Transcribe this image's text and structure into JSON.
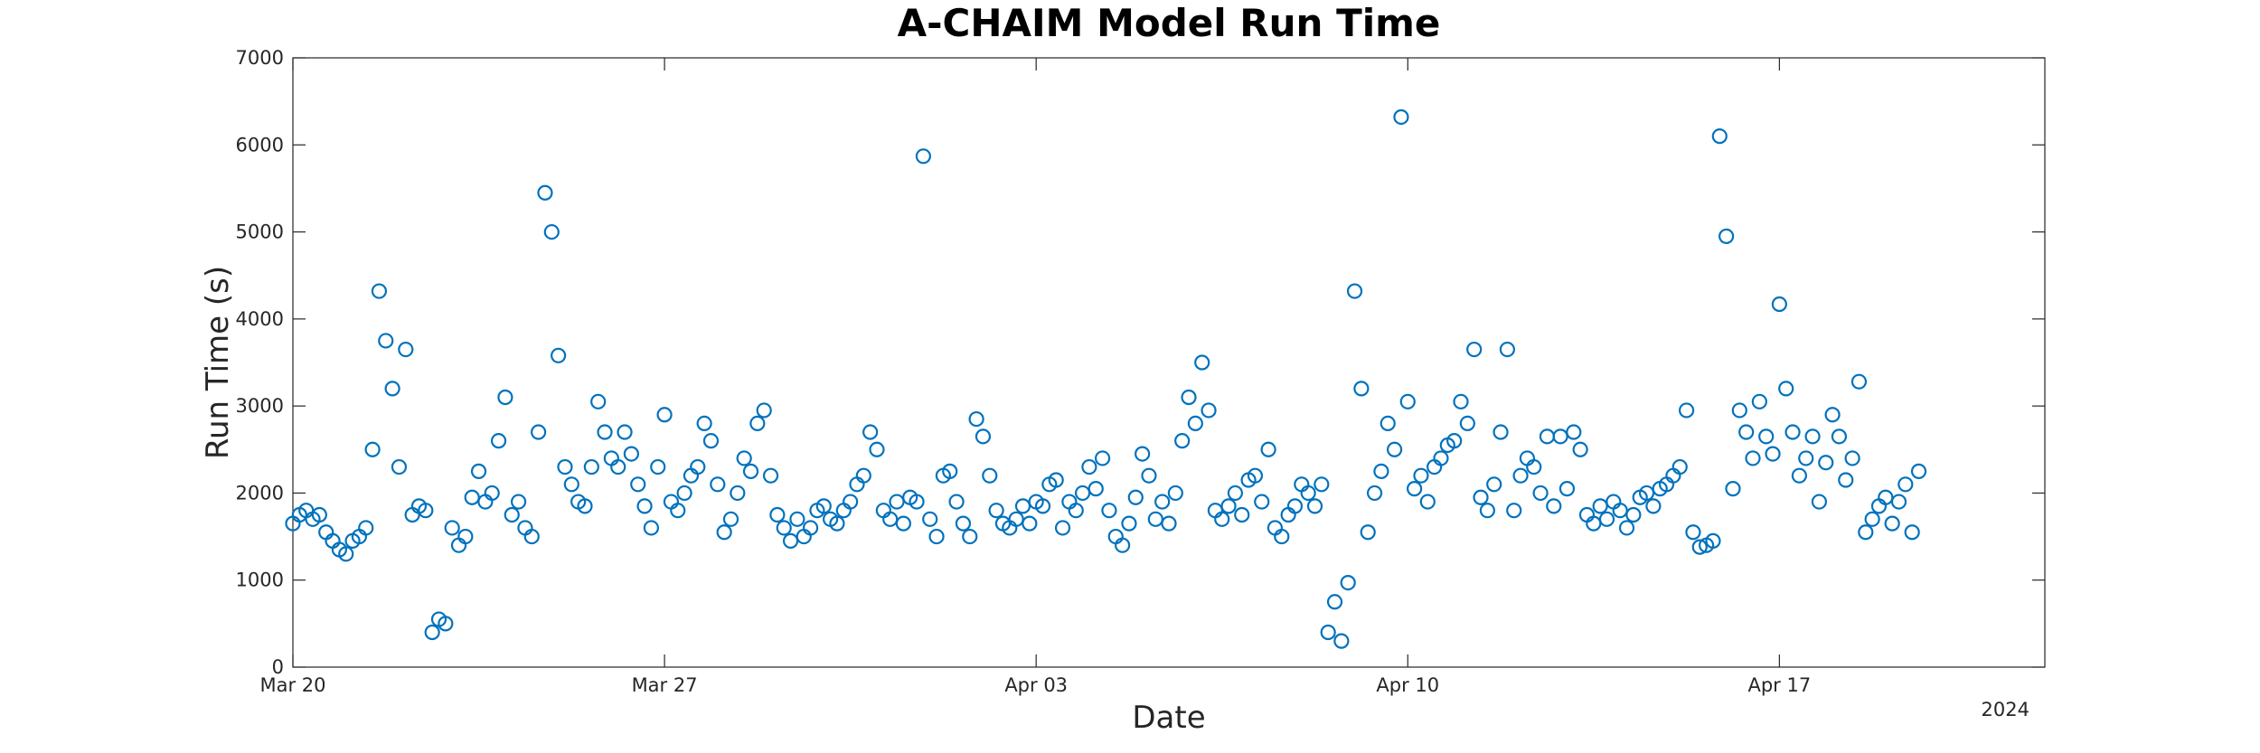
{
  "chart_data": {
    "type": "scatter",
    "title": "A-CHAIM Model Run Time",
    "x_label": "Date",
    "y_label": "Run Time (s)",
    "x_year_label": "2024",
    "color": "#0072BD",
    "marker": "open-circle",
    "grid": false,
    "xlim": [
      "2024-03-20T00:00",
      "2024-04-22T00:00"
    ],
    "xticks": [
      {
        "value": "2024-03-20T00:00",
        "label": "Mar 20"
      },
      {
        "value": "2024-03-27T00:00",
        "label": "Mar 27"
      },
      {
        "value": "2024-04-03T00:00",
        "label": "Apr 03"
      },
      {
        "value": "2024-04-10T00:00",
        "label": "Apr 10"
      },
      {
        "value": "2024-04-17T00:00",
        "label": "Apr 17"
      }
    ],
    "ylim": [
      0,
      7000
    ],
    "yticks": [
      0,
      1000,
      2000,
      3000,
      4000,
      5000,
      6000,
      7000
    ],
    "x": [
      "2024-03-20T00:00",
      "2024-03-20T03:00",
      "2024-03-20T06:00",
      "2024-03-20T09:00",
      "2024-03-20T12:00",
      "2024-03-20T15:00",
      "2024-03-20T18:00",
      "2024-03-20T21:00",
      "2024-03-21T00:00",
      "2024-03-21T03:00",
      "2024-03-21T06:00",
      "2024-03-21T09:00",
      "2024-03-21T12:00",
      "2024-03-21T15:00",
      "2024-03-21T18:00",
      "2024-03-21T21:00",
      "2024-03-22T00:00",
      "2024-03-22T03:00",
      "2024-03-22T06:00",
      "2024-03-22T09:00",
      "2024-03-22T12:00",
      "2024-03-22T15:00",
      "2024-03-22T18:00",
      "2024-03-22T21:00",
      "2024-03-23T00:00",
      "2024-03-23T03:00",
      "2024-03-23T06:00",
      "2024-03-23T09:00",
      "2024-03-23T12:00",
      "2024-03-23T15:00",
      "2024-03-23T18:00",
      "2024-03-23T21:00",
      "2024-03-24T00:00",
      "2024-03-24T03:00",
      "2024-03-24T06:00",
      "2024-03-24T09:00",
      "2024-03-24T12:00",
      "2024-03-24T15:00",
      "2024-03-24T18:00",
      "2024-03-24T21:00",
      "2024-03-25T00:00",
      "2024-03-25T03:00",
      "2024-03-25T06:00",
      "2024-03-25T09:00",
      "2024-03-25T12:00",
      "2024-03-25T15:00",
      "2024-03-25T18:00",
      "2024-03-25T21:00",
      "2024-03-26T00:00",
      "2024-03-26T03:00",
      "2024-03-26T06:00",
      "2024-03-26T09:00",
      "2024-03-26T12:00",
      "2024-03-26T15:00",
      "2024-03-26T18:00",
      "2024-03-26T21:00",
      "2024-03-27T00:00",
      "2024-03-27T03:00",
      "2024-03-27T06:00",
      "2024-03-27T09:00",
      "2024-03-27T12:00",
      "2024-03-27T15:00",
      "2024-03-27T18:00",
      "2024-03-27T21:00",
      "2024-03-28T00:00",
      "2024-03-28T03:00",
      "2024-03-28T06:00",
      "2024-03-28T09:00",
      "2024-03-28T12:00",
      "2024-03-28T15:00",
      "2024-03-28T18:00",
      "2024-03-28T21:00",
      "2024-03-29T00:00",
      "2024-03-29T03:00",
      "2024-03-29T06:00",
      "2024-03-29T09:00",
      "2024-03-29T12:00",
      "2024-03-29T15:00",
      "2024-03-29T18:00",
      "2024-03-29T21:00",
      "2024-03-30T00:00",
      "2024-03-30T03:00",
      "2024-03-30T06:00",
      "2024-03-30T09:00",
      "2024-03-30T12:00",
      "2024-03-30T15:00",
      "2024-03-30T18:00",
      "2024-03-30T21:00",
      "2024-03-31T00:00",
      "2024-03-31T03:00",
      "2024-03-31T06:00",
      "2024-03-31T09:00",
      "2024-03-31T12:00",
      "2024-03-31T15:00",
      "2024-03-31T18:00",
      "2024-03-31T21:00",
      "2024-04-01T00:00",
      "2024-04-01T03:00",
      "2024-04-01T06:00",
      "2024-04-01T09:00",
      "2024-04-01T12:00",
      "2024-04-01T15:00",
      "2024-04-01T18:00",
      "2024-04-01T21:00",
      "2024-04-02T00:00",
      "2024-04-02T03:00",
      "2024-04-02T06:00",
      "2024-04-02T09:00",
      "2024-04-02T12:00",
      "2024-04-02T15:00",
      "2024-04-02T18:00",
      "2024-04-02T21:00",
      "2024-04-03T00:00",
      "2024-04-03T03:00",
      "2024-04-03T06:00",
      "2024-04-03T09:00",
      "2024-04-03T12:00",
      "2024-04-03T15:00",
      "2024-04-03T18:00",
      "2024-04-03T21:00",
      "2024-04-04T00:00",
      "2024-04-04T03:00",
      "2024-04-04T06:00",
      "2024-04-04T09:00",
      "2024-04-04T12:00",
      "2024-04-04T15:00",
      "2024-04-04T18:00",
      "2024-04-04T21:00",
      "2024-04-05T00:00",
      "2024-04-05T03:00",
      "2024-04-05T06:00",
      "2024-04-05T09:00",
      "2024-04-05T12:00",
      "2024-04-05T15:00",
      "2024-04-05T18:00",
      "2024-04-05T21:00",
      "2024-04-06T00:00",
      "2024-04-06T03:00",
      "2024-04-06T06:00",
      "2024-04-06T09:00",
      "2024-04-06T12:00",
      "2024-04-06T15:00",
      "2024-04-06T18:00",
      "2024-04-06T21:00",
      "2024-04-07T00:00",
      "2024-04-07T03:00",
      "2024-04-07T06:00",
      "2024-04-07T09:00",
      "2024-04-07T12:00",
      "2024-04-07T15:00",
      "2024-04-07T18:00",
      "2024-04-07T21:00",
      "2024-04-08T00:00",
      "2024-04-08T03:00",
      "2024-04-08T06:00",
      "2024-04-08T09:00",
      "2024-04-08T12:00",
      "2024-04-08T15:00",
      "2024-04-08T18:00",
      "2024-04-08T21:00",
      "2024-04-09T00:00",
      "2024-04-09T03:00",
      "2024-04-09T06:00",
      "2024-04-09T09:00",
      "2024-04-09T12:00",
      "2024-04-09T15:00",
      "2024-04-09T18:00",
      "2024-04-09T21:00",
      "2024-04-10T00:00",
      "2024-04-10T03:00",
      "2024-04-10T06:00",
      "2024-04-10T09:00",
      "2024-04-10T12:00",
      "2024-04-10T15:00",
      "2024-04-10T18:00",
      "2024-04-10T21:00",
      "2024-04-11T00:00",
      "2024-04-11T03:00",
      "2024-04-11T06:00",
      "2024-04-11T09:00",
      "2024-04-11T12:00",
      "2024-04-11T15:00",
      "2024-04-11T18:00",
      "2024-04-11T21:00",
      "2024-04-12T00:00",
      "2024-04-12T03:00",
      "2024-04-12T06:00",
      "2024-04-12T09:00",
      "2024-04-12T12:00",
      "2024-04-12T15:00",
      "2024-04-12T18:00",
      "2024-04-12T21:00",
      "2024-04-13T00:00",
      "2024-04-13T03:00",
      "2024-04-13T06:00",
      "2024-04-13T09:00",
      "2024-04-13T12:00",
      "2024-04-13T15:00",
      "2024-04-13T18:00",
      "2024-04-13T21:00",
      "2024-04-14T00:00",
      "2024-04-14T03:00",
      "2024-04-14T06:00",
      "2024-04-14T09:00",
      "2024-04-14T12:00",
      "2024-04-14T15:00",
      "2024-04-14T18:00",
      "2024-04-14T21:00",
      "2024-04-15T00:00",
      "2024-04-15T03:00",
      "2024-04-15T06:00",
      "2024-04-15T09:00",
      "2024-04-15T12:00",
      "2024-04-15T15:00",
      "2024-04-15T18:00",
      "2024-04-15T21:00",
      "2024-04-16T00:00",
      "2024-04-16T03:00",
      "2024-04-16T06:00",
      "2024-04-16T09:00",
      "2024-04-16T12:00",
      "2024-04-16T15:00",
      "2024-04-16T18:00",
      "2024-04-16T21:00",
      "2024-04-17T00:00",
      "2024-04-17T03:00",
      "2024-04-17T06:00",
      "2024-04-17T09:00",
      "2024-04-17T12:00",
      "2024-04-17T15:00",
      "2024-04-17T18:00",
      "2024-04-17T21:00",
      "2024-04-18T00:00",
      "2024-04-18T03:00",
      "2024-04-18T06:00",
      "2024-04-18T09:00",
      "2024-04-18T12:00",
      "2024-04-18T15:00",
      "2024-04-18T18:00",
      "2024-04-18T21:00",
      "2024-04-19T00:00",
      "2024-04-19T03:00",
      "2024-04-19T06:00",
      "2024-04-19T09:00",
      "2024-04-19T12:00",
      "2024-04-19T15:00"
    ],
    "values": [
      1650,
      1750,
      1800,
      1700,
      1750,
      1550,
      1450,
      1350,
      1300,
      1450,
      1500,
      1600,
      2500,
      4320,
      3750,
      3200,
      2300,
      3650,
      1750,
      1850,
      1800,
      400,
      550,
      500,
      1600,
      1400,
      1500,
      1950,
      2250,
      1900,
      2000,
      2600,
      3100,
      1750,
      1900,
      1600,
      1500,
      2700,
      5450,
      5000,
      3580,
      2300,
      2100,
      1900,
      1850,
      2300,
      3050,
      2700,
      2400,
      2300,
      2700,
      2450,
      2100,
      1850,
      1600,
      2300,
      2900,
      1900,
      1800,
      2000,
      2200,
      2300,
      2800,
      2600,
      2100,
      1550,
      1700,
      2000,
      2400,
      2250,
      2800,
      2950,
      2200,
      1750,
      1600,
      1450,
      1700,
      1500,
      1600,
      1800,
      1850,
      1700,
      1650,
      1800,
      1900,
      2100,
      2200,
      2700,
      2500,
      1800,
      1700,
      1900,
      1650,
      1950,
      1900,
      5870,
      1700,
      1500,
      2200,
      2250,
      1900,
      1650,
      1500,
      2850,
      2650,
      2200,
      1800,
      1650,
      1600,
      1700,
      1850,
      1650,
      1900,
      1850,
      2100,
      2150,
      1600,
      1900,
      1800,
      2000,
      2300,
      2050,
      2400,
      1800,
      1500,
      1400,
      1650,
      1950,
      2450,
      2200,
      1700,
      1900,
      1650,
      2000,
      2600,
      3100,
      2800,
      3500,
      2950,
      1800,
      1700,
      1850,
      2000,
      1750,
      2150,
      2200,
      1900,
      2500,
      1600,
      1500,
      1750,
      1850,
      2100,
      2000,
      1850,
      2100,
      400,
      750,
      300,
      970,
      4320,
      3200,
      1550,
      2000,
      2250,
      2800,
      2500,
      6320,
      3050,
      2050,
      2200,
      1900,
      2300,
      2400,
      2550,
      2600,
      3050,
      2800,
      3650,
      1950,
      1800,
      2100,
      2700,
      3650,
      1800,
      2200,
      2400,
      2300,
      2000,
      2650,
      1850,
      2650,
      2050,
      2700,
      2500,
      1750,
      1650,
      1850,
      1700,
      1900,
      1800,
      1600,
      1750,
      1950,
      2000,
      1850,
      2050,
      2100,
      2200,
      2300,
      2950,
      1550,
      1380,
      1400,
      1450,
      6100,
      4950,
      2050,
      2950,
      2700,
      2400,
      3050,
      2650,
      2450,
      4170,
      3200,
      2700,
      2200,
      2400,
      2650,
      1900,
      2350,
      2900,
      2650,
      2150,
      2400,
      3280,
      1550,
      1700,
      1850,
      1950,
      1650,
      1900,
      2100,
      1550,
      2250
    ]
  }
}
